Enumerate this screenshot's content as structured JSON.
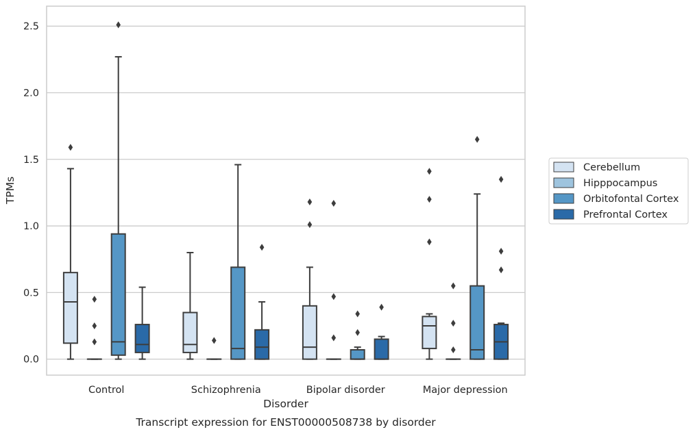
{
  "chart_data": {
    "type": "boxplot",
    "title": "Transcript expression for ENST00000508738 by disorder",
    "xlabel": "Disorder",
    "ylabel": "TPMs",
    "ylim": [
      -0.12,
      2.65
    ],
    "yticks": [
      0.0,
      0.5,
      1.0,
      1.5,
      2.0,
      2.5
    ],
    "ytick_labels": [
      "0.0",
      "0.5",
      "1.0",
      "1.5",
      "2.0",
      "2.5"
    ],
    "grid": "horizontal",
    "legend_position": "right",
    "categories": [
      "Control",
      "Schizophrenia",
      "Bipolar disorder",
      "Major depression"
    ],
    "series": [
      {
        "name": "Cerebellum",
        "color": "#d4e3f2",
        "boxes": [
          {
            "whislo": 0.0,
            "q1": 0.12,
            "med": 0.43,
            "q3": 0.65,
            "whishi": 1.43,
            "fliers": [
              1.59
            ]
          },
          {
            "whislo": 0.0,
            "q1": 0.05,
            "med": 0.11,
            "q3": 0.35,
            "whishi": 0.8,
            "fliers": []
          },
          {
            "whislo": 0.0,
            "q1": 0.0,
            "med": 0.09,
            "q3": 0.4,
            "whishi": 0.69,
            "fliers": [
              1.01,
              1.18
            ]
          },
          {
            "whislo": 0.0,
            "q1": 0.08,
            "med": 0.25,
            "q3": 0.32,
            "whishi": 0.34,
            "fliers": [
              0.88,
              1.2,
              1.41
            ]
          }
        ]
      },
      {
        "name": "Hipppocampus",
        "color": "#9ec4de",
        "boxes": [
          {
            "whislo": 0.0,
            "q1": 0.0,
            "med": 0.0,
            "q3": 0.0,
            "whishi": 0.0,
            "fliers": [
              0.13,
              0.25,
              0.45
            ]
          },
          {
            "whislo": 0.0,
            "q1": 0.0,
            "med": 0.0,
            "q3": 0.0,
            "whishi": 0.0,
            "fliers": [
              0.14
            ]
          },
          {
            "whislo": 0.0,
            "q1": 0.0,
            "med": 0.0,
            "q3": 0.0,
            "whishi": 0.0,
            "fliers": [
              0.16,
              0.47,
              1.17
            ]
          },
          {
            "whislo": 0.0,
            "q1": 0.0,
            "med": 0.0,
            "q3": 0.0,
            "whishi": 0.0,
            "fliers": [
              0.07,
              0.27,
              0.55
            ]
          }
        ]
      },
      {
        "name": "Orbitofontal Cortex",
        "color": "#5597c6",
        "boxes": [
          {
            "whislo": 0.0,
            "q1": 0.03,
            "med": 0.13,
            "q3": 0.94,
            "whishi": 2.27,
            "fliers": [
              2.51
            ]
          },
          {
            "whislo": 0.0,
            "q1": 0.0,
            "med": 0.08,
            "q3": 0.69,
            "whishi": 1.46,
            "fliers": []
          },
          {
            "whislo": 0.0,
            "q1": 0.0,
            "med": 0.0,
            "q3": 0.07,
            "whishi": 0.09,
            "fliers": [
              0.2,
              0.34
            ]
          },
          {
            "whislo": 0.0,
            "q1": 0.0,
            "med": 0.07,
            "q3": 0.55,
            "whishi": 1.24,
            "fliers": [
              1.65
            ]
          }
        ]
      },
      {
        "name": "Prefrontal Cortex",
        "color": "#2a6aa8",
        "boxes": [
          {
            "whislo": 0.0,
            "q1": 0.05,
            "med": 0.11,
            "q3": 0.26,
            "whishi": 0.54,
            "fliers": []
          },
          {
            "whislo": 0.0,
            "q1": 0.0,
            "med": 0.09,
            "q3": 0.22,
            "whishi": 0.43,
            "fliers": [
              0.84
            ]
          },
          {
            "whislo": 0.0,
            "q1": 0.0,
            "med": 0.0,
            "q3": 0.15,
            "whishi": 0.17,
            "fliers": [
              0.39
            ]
          },
          {
            "whislo": 0.0,
            "q1": 0.0,
            "med": 0.13,
            "q3": 0.26,
            "whishi": 0.27,
            "fliers": [
              0.67,
              0.81,
              1.35
            ]
          }
        ]
      }
    ]
  }
}
